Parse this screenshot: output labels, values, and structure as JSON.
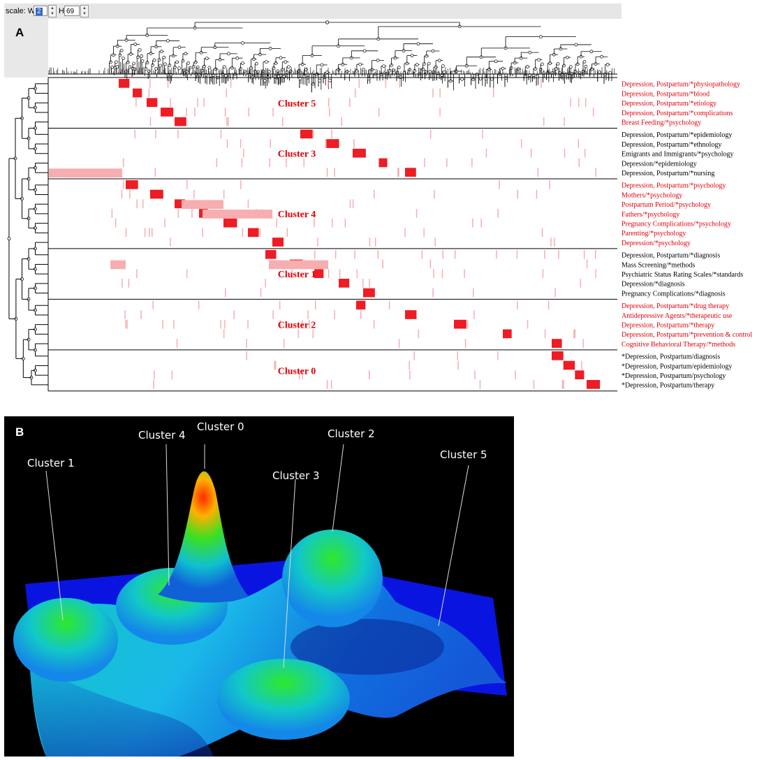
{
  "toolbar": {
    "scale_label": "scale: W",
    "w_value": "2",
    "h_label": "H",
    "h_value": "69"
  },
  "panel_a": {
    "letter": "A",
    "clusters": [
      {
        "name": "Cluster 5",
        "terms": [
          {
            "text": "Depression, Postpartum/*physiopathology",
            "color": "#e0000a"
          },
          {
            "text": "Depression, Postpartum/*blood",
            "color": "#e0000a"
          },
          {
            "text": "Depression, Postpartum/*etiology",
            "color": "#e0000a"
          },
          {
            "text": "Depression, Postpartum/*complications",
            "color": "#e0000a"
          },
          {
            "text": "Breast Feeding/*psychology",
            "color": "#e0000a"
          }
        ]
      },
      {
        "name": "Cluster 3",
        "terms": [
          {
            "text": "Depression, Postpartum/*epidemiology",
            "color": "#000000"
          },
          {
            "text": "Depression, Postpartum/*ethnology",
            "color": "#000000"
          },
          {
            "text": "Emigrants and Immigrants/*psychology",
            "color": "#000000"
          },
          {
            "text": "Depression/*epidemiology",
            "color": "#000000"
          },
          {
            "text": "Depression, Postpartum/*nursing",
            "color": "#000000"
          }
        ]
      },
      {
        "name": "Cluster 4",
        "terms": [
          {
            "text": "Depression, Postpartum/*psychology",
            "color": "#e0000a"
          },
          {
            "text": "Mothers/*psychology",
            "color": "#e0000a"
          },
          {
            "text": "Postpartum Period/*psychology",
            "color": "#e0000a"
          },
          {
            "text": "Fathers/*psychology",
            "color": "#e0000a"
          },
          {
            "text": "Pregnancy Complications/*psychology",
            "color": "#e0000a"
          },
          {
            "text": "Parenting/*psychology",
            "color": "#e0000a"
          },
          {
            "text": "Depression/*psychology",
            "color": "#e0000a"
          }
        ]
      },
      {
        "name": "Cluster 1",
        "terms": [
          {
            "text": "Depression, Postpartum/*diagnosis",
            "color": "#000000"
          },
          {
            "text": "Mass Screening/*methods",
            "color": "#000000"
          },
          {
            "text": "Psychiatric Status Rating Scales/*standards",
            "color": "#000000"
          },
          {
            "text": "Depression/*diagnosis",
            "color": "#000000"
          },
          {
            "text": "Pregnancy Complications/*diagnosis",
            "color": "#000000"
          }
        ]
      },
      {
        "name": "Cluster 2",
        "terms": [
          {
            "text": "Depression, Postpartum/*drug therapy",
            "color": "#e0000a"
          },
          {
            "text": "Antidepressive Agents/*therapeutic use",
            "color": "#e0000a"
          },
          {
            "text": "Depression, Postpartum/*therapy",
            "color": "#e0000a"
          },
          {
            "text": "Depression, Postpartum/*prevention & control",
            "color": "#e0000a"
          },
          {
            "text": "Cognitive Behavioral Therapy/*methods",
            "color": "#e0000a"
          }
        ]
      },
      {
        "name": "Cluster 0",
        "terms": [
          {
            "text": "*Depression, Postpartum/diagnosis",
            "color": "#000000"
          },
          {
            "text": "*Depression, Postpartum/epidemiology",
            "color": "#000000"
          },
          {
            "text": "*Depression, Postpartum/psychology",
            "color": "#000000"
          },
          {
            "text": "*Depression, Postpartum/therapy",
            "color": "#000000"
          }
        ]
      }
    ]
  },
  "panel_b": {
    "letter": "B",
    "labels": [
      "Cluster 0",
      "Cluster 4",
      "Cluster 2",
      "Cluster 1",
      "Cluster 3",
      "Cluster 5"
    ]
  },
  "colors": {
    "heat_strong": "#ee1c24",
    "heat_light": "#f7aeb0",
    "panel_b_bg": "#000000"
  }
}
